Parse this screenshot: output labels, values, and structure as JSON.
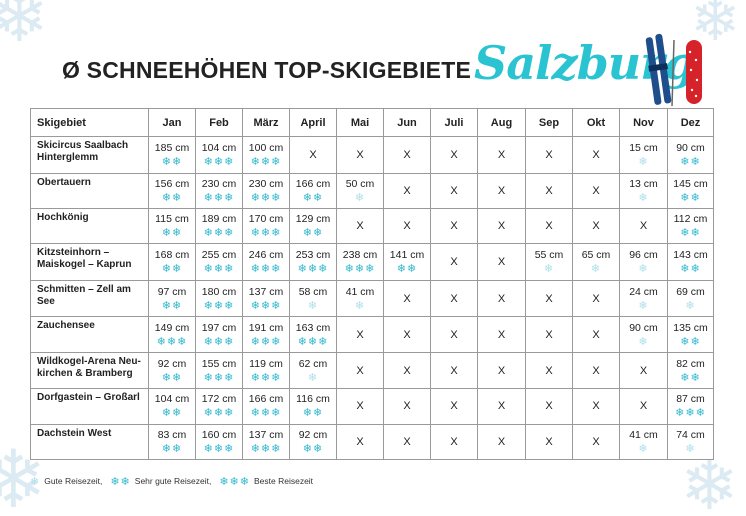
{
  "title": "Ø SCHNEEHÖHEN TOP-SKIGEBIETE",
  "script_title": "Salzburg",
  "columns": [
    "Skigebiet",
    "Jan",
    "Feb",
    "März",
    "April",
    "Mai",
    "Jun",
    "Juli",
    "Aug",
    "Sep",
    "Okt",
    "Nov",
    "Dez"
  ],
  "rows": [
    {
      "name": "Skicircus Saalbach Hinterglemm",
      "cells": [
        [
          "185 cm",
          2
        ],
        [
          "104 cm",
          3
        ],
        [
          "100 cm",
          3
        ],
        [
          "X",
          0
        ],
        [
          "X",
          0
        ],
        [
          "X",
          0
        ],
        [
          "X",
          0
        ],
        [
          "X",
          0
        ],
        [
          "X",
          0
        ],
        [
          "X",
          0
        ],
        [
          "15 cm",
          1
        ],
        [
          "90 cm",
          2
        ]
      ]
    },
    {
      "name": "Obertauern",
      "cells": [
        [
          "156 cm",
          2
        ],
        [
          "230 cm",
          3
        ],
        [
          "230 cm",
          3
        ],
        [
          "166 cm",
          2
        ],
        [
          "50 cm",
          1
        ],
        [
          "X",
          0
        ],
        [
          "X",
          0
        ],
        [
          "X",
          0
        ],
        [
          "X",
          0
        ],
        [
          "X",
          0
        ],
        [
          "13 cm",
          1
        ],
        [
          "145 cm",
          2
        ]
      ]
    },
    {
      "name": "Hochkönig",
      "cells": [
        [
          "115 cm",
          2
        ],
        [
          "189 cm",
          3
        ],
        [
          "170 cm",
          3
        ],
        [
          "129 cm",
          2
        ],
        [
          "X",
          0
        ],
        [
          "X",
          0
        ],
        [
          "X",
          0
        ],
        [
          "X",
          0
        ],
        [
          "X",
          0
        ],
        [
          "X",
          0
        ],
        [
          "X",
          0
        ],
        [
          "112 cm",
          2
        ]
      ]
    },
    {
      "name": "Kitzsteinhorn – Maiskogel – Kaprun",
      "cells": [
        [
          "168 cm",
          2
        ],
        [
          "255 cm",
          3
        ],
        [
          "246 cm",
          3
        ],
        [
          "253 cm",
          3
        ],
        [
          "238 cm",
          3
        ],
        [
          "141 cm",
          2
        ],
        [
          "X",
          0
        ],
        [
          "X",
          0
        ],
        [
          "55 cm",
          1
        ],
        [
          "65 cm",
          1
        ],
        [
          "96 cm",
          1
        ],
        [
          "143 cm",
          2
        ]
      ]
    },
    {
      "name": "Schmitten – Zell am See",
      "cells": [
        [
          "97 cm",
          2
        ],
        [
          "180 cm",
          3
        ],
        [
          "137 cm",
          3
        ],
        [
          "58 cm",
          1
        ],
        [
          "41 cm",
          1
        ],
        [
          "X",
          0
        ],
        [
          "X",
          0
        ],
        [
          "X",
          0
        ],
        [
          "X",
          0
        ],
        [
          "X",
          0
        ],
        [
          "24 cm",
          1
        ],
        [
          "69 cm",
          1
        ]
      ]
    },
    {
      "name": "Zauchensee",
      "cells": [
        [
          "149 cm",
          3
        ],
        [
          "197 cm",
          3
        ],
        [
          "191 cm",
          3
        ],
        [
          "163 cm",
          3
        ],
        [
          "X",
          0
        ],
        [
          "X",
          0
        ],
        [
          "X",
          0
        ],
        [
          "X",
          0
        ],
        [
          "X",
          0
        ],
        [
          "X",
          0
        ],
        [
          "90 cm",
          1
        ],
        [
          "135 cm",
          2
        ]
      ]
    },
    {
      "name": "Wildkogel-Arena Neu-kirchen & Bramberg",
      "cells": [
        [
          "92 cm",
          2
        ],
        [
          "155 cm",
          3
        ],
        [
          "119 cm",
          3
        ],
        [
          "62 cm",
          1
        ],
        [
          "X",
          0
        ],
        [
          "X",
          0
        ],
        [
          "X",
          0
        ],
        [
          "X",
          0
        ],
        [
          "X",
          0
        ],
        [
          "X",
          0
        ],
        [
          "X",
          0
        ],
        [
          "82 cm",
          2
        ]
      ]
    },
    {
      "name": "Dorfgastein – Großarl",
      "cells": [
        [
          "104 cm",
          2
        ],
        [
          "172 cm",
          3
        ],
        [
          "166 cm",
          3
        ],
        [
          "116 cm",
          2
        ],
        [
          "X",
          0
        ],
        [
          "X",
          0
        ],
        [
          "X",
          0
        ],
        [
          "X",
          0
        ],
        [
          "X",
          0
        ],
        [
          "X",
          0
        ],
        [
          "X",
          0
        ],
        [
          "87 cm",
          3
        ]
      ]
    },
    {
      "name": "Dachstein West",
      "cells": [
        [
          "83 cm",
          2
        ],
        [
          "160 cm",
          3
        ],
        [
          "137 cm",
          3
        ],
        [
          "92 cm",
          2
        ],
        [
          "X",
          0
        ],
        [
          "X",
          0
        ],
        [
          "X",
          0
        ],
        [
          "X",
          0
        ],
        [
          "X",
          0
        ],
        [
          "X",
          0
        ],
        [
          "41 cm",
          1
        ],
        [
          "74 cm",
          1
        ]
      ]
    }
  ],
  "legend": [
    {
      "flakes": 1,
      "label": "Gute Reisezeit,"
    },
    {
      "flakes": 2,
      "label": "Sehr gute Reisezeit,"
    },
    {
      "flakes": 3,
      "label": "Beste Reisezeit"
    }
  ],
  "colors": {
    "accent": "#2ac3d2",
    "flake": "#35b8cf",
    "flake_pale": "#aee0ea",
    "ski_red": "#d6232a",
    "ski_blue": "#1f4e8c"
  },
  "icons": {
    "snowflake": "snowflake-icon",
    "skis": "skis-illustration"
  }
}
